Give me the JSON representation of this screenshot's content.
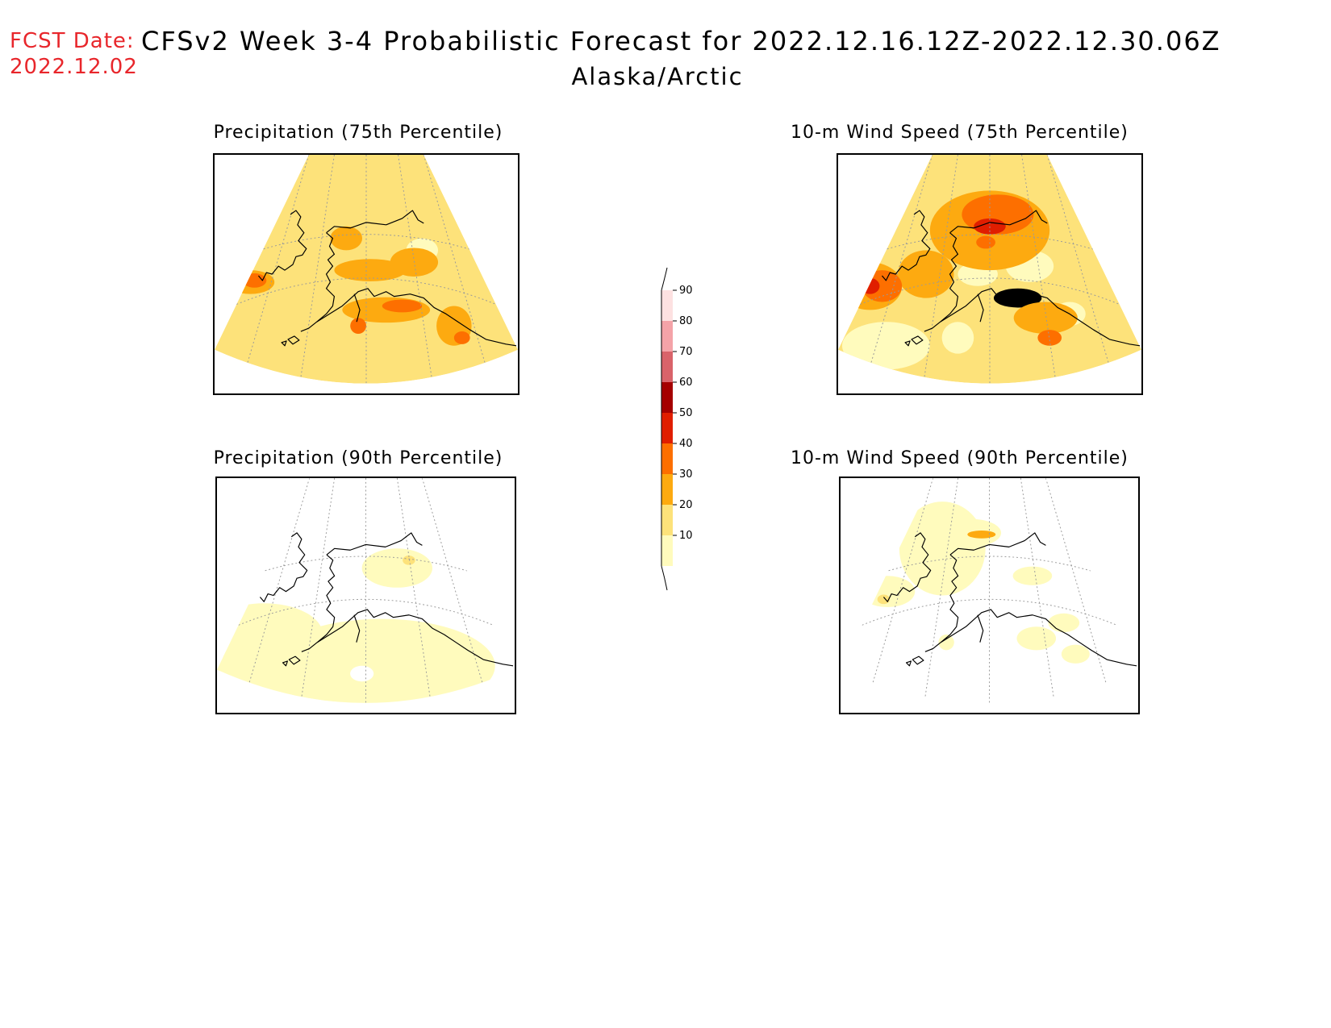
{
  "header": {
    "fcst_label": "FCST Date:",
    "fcst_date": "2022.12.02",
    "title": "CFSv2 Week 3-4 Probabilistic Forecast for 2022.12.16.12Z-2022.12.30.06Z",
    "region": "Alaska/Arctic"
  },
  "panels": [
    {
      "title": "Precipitation (75th Percentile)",
      "fill": "light"
    },
    {
      "title": "10-m Wind Speed (75th Percentile)",
      "fill": "medium"
    },
    {
      "title": "Precipitation (90th Percentile)",
      "fill": "sparse"
    },
    {
      "title": "10-m Wind Speed (90th Percentile)",
      "fill": "sparse"
    }
  ],
  "colorbar": {
    "levels": [
      "10",
      "20",
      "30",
      "40",
      "50",
      "60",
      "70",
      "80",
      "90"
    ],
    "colors": [
      "#fffbbd",
      "#fde27a",
      "#fdaa10",
      "#fd6f00",
      "#e01e00",
      "#a50000",
      "#d9636a",
      "#f4a3a8",
      "#fde1e1"
    ]
  }
}
